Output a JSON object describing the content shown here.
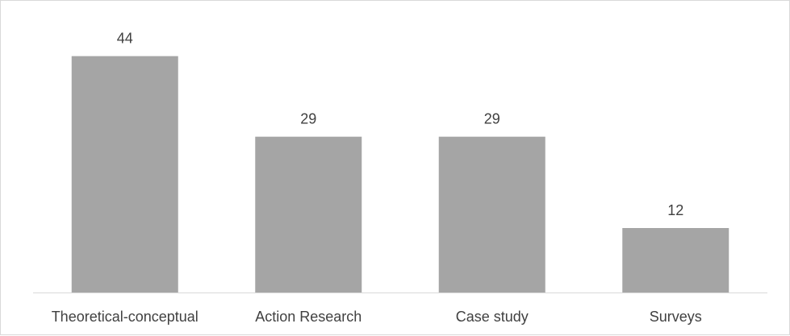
{
  "chart_data": {
    "type": "bar",
    "categories": [
      "Theoretical-conceptual",
      "Action Research",
      "Case study",
      "Surveys"
    ],
    "values": [
      44,
      29,
      29,
      12
    ],
    "title": "",
    "xlabel": "",
    "ylabel": "",
    "ylim": [
      0,
      48
    ],
    "grid": false,
    "legend": "none",
    "data_labels": true,
    "bar_color": "#a5a5a5",
    "axis_color": "#d9d9d9",
    "text_color": "#404040"
  }
}
